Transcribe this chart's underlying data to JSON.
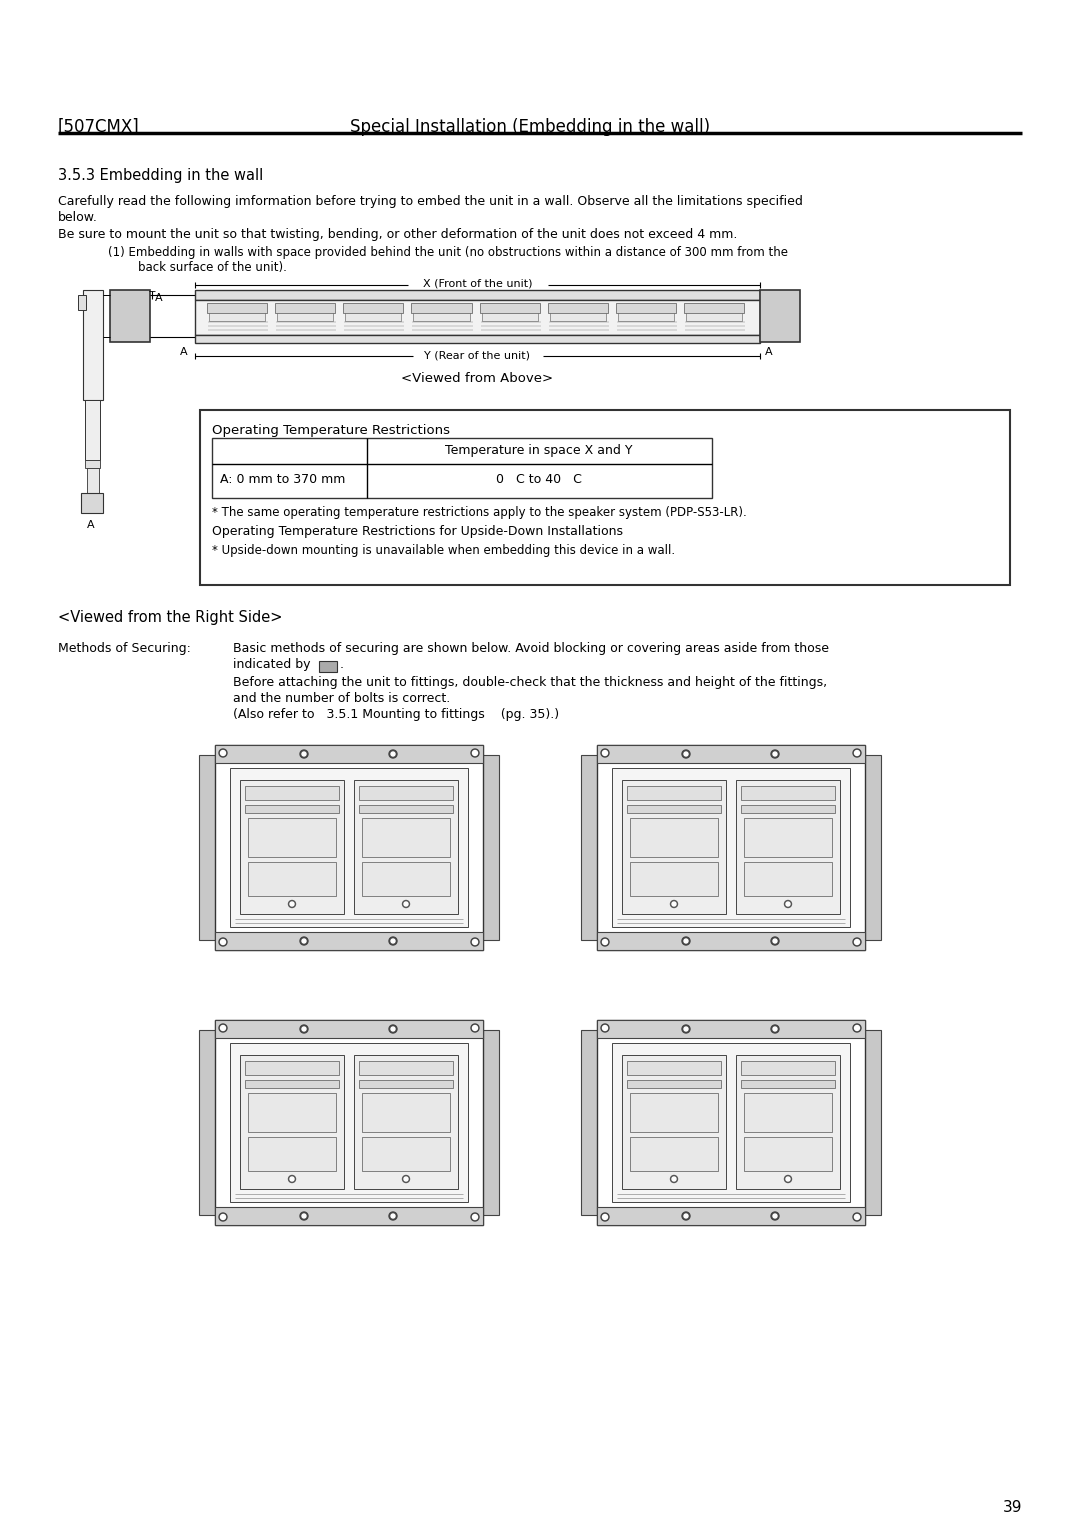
{
  "page_title_left": "[507CMX]",
  "page_title_right": "Special Installation (Embedding in the wall)",
  "section_heading": "3.5.3 Embedding in the wall",
  "para1a": "Carefully read the following imformation before trying to embed the unit in a wall. Observe all the limitations specified",
  "para1b": "below.",
  "para2": "Be sure to mount the unit so that twisting, bending, or other deformation of the unit does not exceed 4 mm.",
  "para3a": "(1) Embedding in walls with space provided behind the unit (no obstructions within a distance of 300 mm from the",
  "para3b": "back surface of the unit).",
  "diagram_x_label": "X (Front of the unit)",
  "diagram_y_label": "Y (Rear of the unit)",
  "viewed_above": "<Viewed from Above>",
  "table_title": "Operating Temperature Restrictions",
  "table_col_header": "Temperature in space X and Y",
  "table_row_label": "A: 0 mm to 370 mm",
  "table_cell": "0   C to 40   C",
  "table_note1": "* The same operating temperature restrictions apply to the speaker system (PDP-S53-LR).",
  "table_note2": "Operating Temperature Restrictions for Upside-Down Installations",
  "table_note3": "* Upside-down mounting is unavailable when embedding this device in a wall.",
  "viewed_right": "<Viewed from the Right Side>",
  "methods_label": "Methods of Securing:",
  "methods_text1a": "Basic methods of securing are shown below. Avoid blocking or covering areas aside from those",
  "methods_text1b": "indicated by",
  "methods_text2a": "Before attaching the unit to fittings, double-check that the thickness and height of the fittings,",
  "methods_text2b": "and the number of bolts is correct.",
  "methods_text3": "(Also refer to   3.5.1 Mounting to fittings    (pg. 35).)",
  "page_number": "39",
  "bg_color": "#ffffff"
}
